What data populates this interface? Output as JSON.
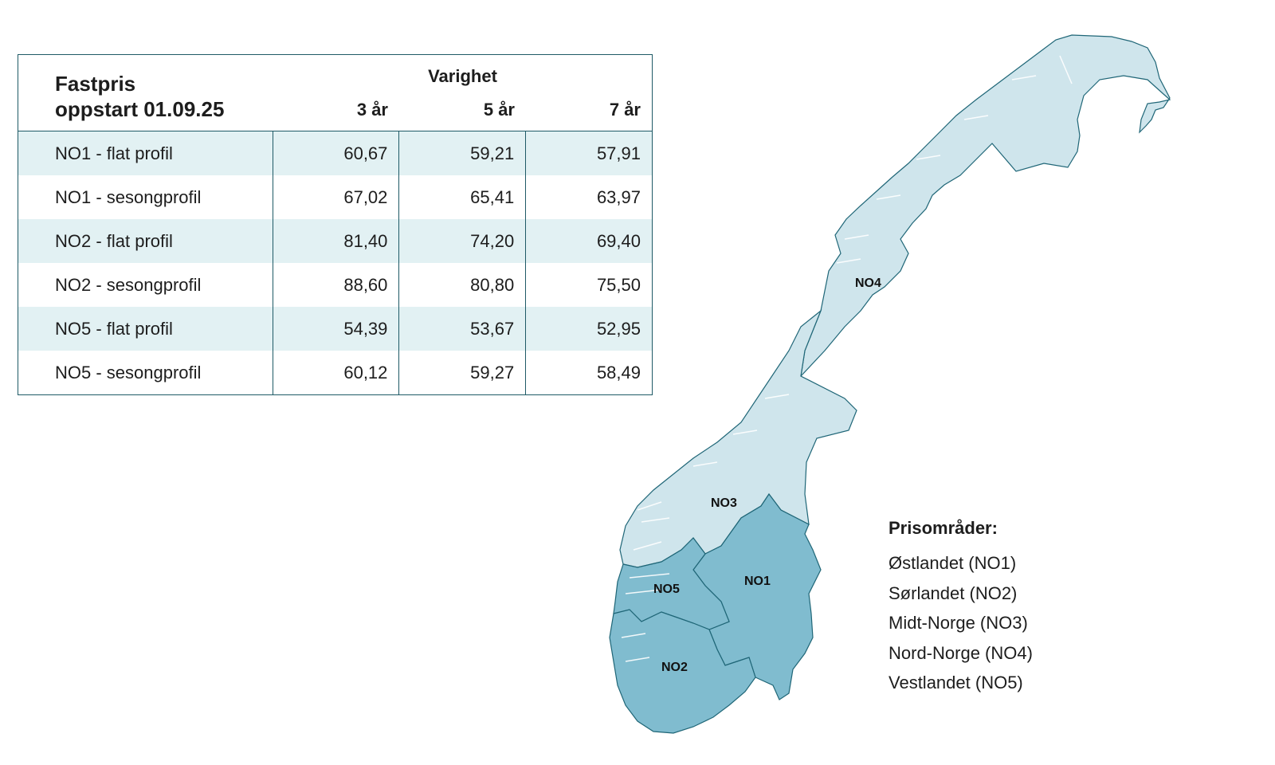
{
  "table": {
    "title_line1": "Fastpris",
    "title_line2": "oppstart 01.09.25",
    "group_header": "Varighet",
    "columns": [
      "3 år",
      "5 år",
      "7 år"
    ],
    "rows": [
      {
        "label": "NO1 - flat profil",
        "values": [
          "60,67",
          "59,21",
          "57,91"
        ]
      },
      {
        "label": "NO1 - sesongprofil",
        "values": [
          "67,02",
          "65,41",
          "63,97"
        ]
      },
      {
        "label": "NO2 - flat profil",
        "values": [
          "81,40",
          "74,20",
          "69,40"
        ]
      },
      {
        "label": "NO2 - sesongprofil",
        "values": [
          "88,60",
          "80,80",
          "75,50"
        ]
      },
      {
        "label": "NO5 - flat profil",
        "values": [
          "54,39",
          "53,67",
          "52,95"
        ]
      },
      {
        "label": "NO5 - sesongprofil",
        "values": [
          "60,12",
          "59,27",
          "58,49"
        ]
      }
    ]
  },
  "map": {
    "regions": {
      "no1": "NO1",
      "no2": "NO2",
      "no3": "NO3",
      "no4": "NO4",
      "no5": "NO5"
    },
    "colors": {
      "north": "#cfe5ec",
      "south": "#80bccf",
      "border": "#1f6677"
    }
  },
  "legend": {
    "title": "Prisområder:",
    "items": [
      "Østlandet (NO1)",
      "Sørlandet (NO2)",
      "Midt-Norge (NO3)",
      "Nord-Norge (NO4)",
      "Vestlandet (NO5)"
    ]
  }
}
